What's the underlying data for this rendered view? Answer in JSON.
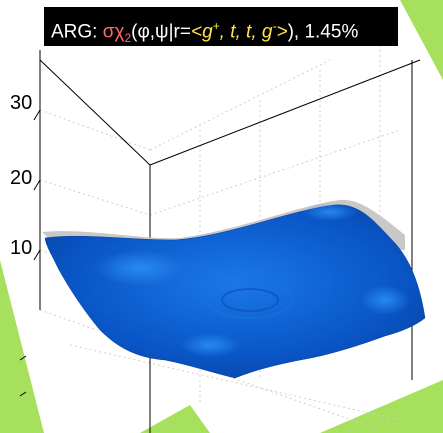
{
  "title": {
    "prefix": "ARG: ",
    "sigma": "σχ",
    "sigma_sub": "2",
    "args": "(φ,ψ|r=",
    "g_plus_base": "<g",
    "g_plus_sup": "+",
    "t1": ", t, t, ",
    "g_minus_base": "g",
    "g_minus_sup": "-",
    "g_minus_close": ">",
    "suffix": "), 1.45%"
  },
  "chart_data": {
    "type": "surface",
    "z_ticks": [
      10,
      20,
      30
    ],
    "z_tick_labels": [
      "10",
      "20",
      "30"
    ],
    "surface_color": "#0a56c8",
    "surface_shadow_color": "#c8c8c8",
    "grid": true
  },
  "colors": {
    "background": "#a6e05c",
    "panel": "#ffffff",
    "title_bg": "#000000",
    "title_red": "#ff6a6a",
    "title_yellow": "#ffe54a"
  }
}
